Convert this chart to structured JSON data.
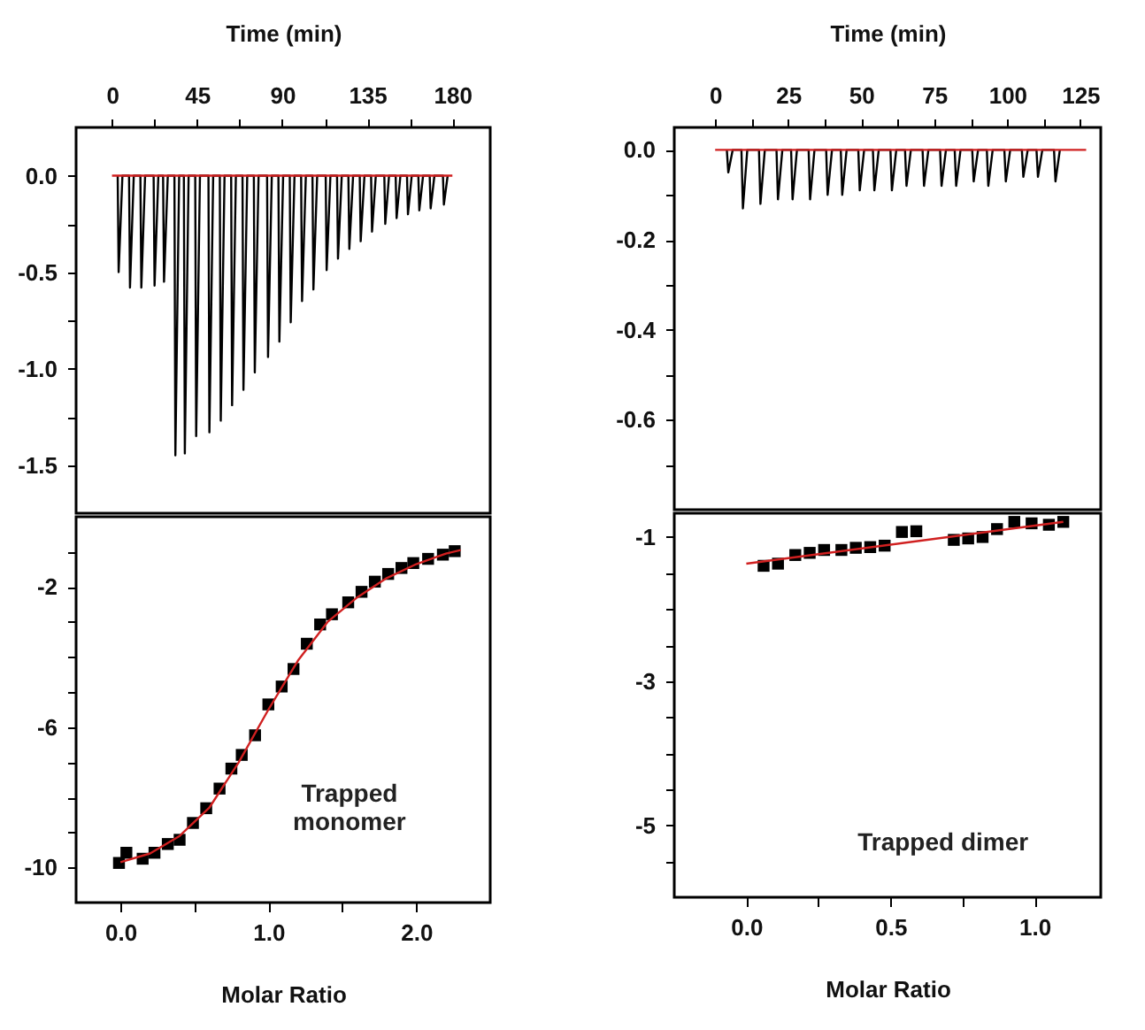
{
  "chart_data": [
    {
      "type": "line",
      "xlabel": "Time (min)",
      "xlim": [
        -19,
        200
      ],
      "ylim": [
        -1.75,
        0.25
      ],
      "xticks": [
        0,
        {
          "value": 22.5,
          "label": null
        },
        45,
        {
          "value": 67.5,
          "label": null
        },
        90,
        {
          "value": 112.5,
          "label": null
        },
        135,
        {
          "value": 157.5,
          "label": null
        },
        180
      ],
      "yticks": [
        {
          "value": 0,
          "label": "0.0"
        },
        {
          "value": -0.25,
          "label": null
        },
        {
          "value": -0.5,
          "label": "-0.5"
        },
        {
          "value": -0.75,
          "label": null
        },
        {
          "value": -1,
          "label": "-1.0"
        },
        {
          "value": -1.25,
          "label": null
        },
        {
          "value": -1.5,
          "label": "-1.5"
        }
      ],
      "series": [
        {
          "color": "#000000",
          "x": [
            3,
            3.5,
            5.5,
            9,
            9.5,
            11.5,
            15,
            15.5,
            17.5,
            22,
            22.5,
            24.5,
            27,
            27.5,
            29.5,
            33,
            33.5,
            35.5,
            38,
            38.5,
            40.5,
            44,
            44.5,
            46.5,
            51,
            51.5,
            53.5,
            57,
            57.5,
            59.5,
            63,
            63.5,
            65.5,
            69,
            69.5,
            71.5,
            75,
            75.5,
            77.5,
            82,
            82.5,
            84.5,
            88,
            88.5,
            90.5,
            94,
            94.5,
            96.5,
            100,
            100.5,
            102.5,
            106,
            106.5,
            108.5,
            113,
            113.5,
            115.5,
            119,
            119.5,
            121.5,
            125,
            125.5,
            127.5,
            131,
            131.5,
            133.5,
            137,
            137.5,
            139.5,
            144,
            144.5,
            146.5,
            150,
            150.5,
            152.5,
            156,
            156.5,
            158.5,
            162,
            162.5,
            164.5,
            168,
            168.5,
            170.5,
            175,
            175.5,
            177.5
          ],
          "values": [
            0,
            -0.5,
            0,
            0,
            -0.58,
            0,
            0,
            -0.58,
            0,
            0,
            -0.57,
            0,
            0,
            -0.55,
            0,
            0,
            -1.45,
            0,
            0,
            -1.44,
            0,
            0,
            -1.35,
            0,
            0,
            -1.33,
            0,
            0,
            -1.27,
            0,
            0,
            -1.19,
            0,
            0,
            -1.11,
            0,
            0,
            -1.02,
            0,
            0,
            -0.94,
            0,
            0,
            -0.86,
            0,
            0,
            -0.76,
            0,
            0,
            -0.65,
            0,
            0,
            -0.59,
            0,
            0,
            -0.49,
            0,
            0,
            -0.43,
            0,
            0,
            -0.38,
            0,
            0,
            -0.34,
            0,
            0,
            -0.29,
            0,
            0,
            -0.25,
            0,
            0,
            -0.22,
            0,
            0,
            -0.2,
            0,
            0,
            -0.18,
            0,
            0,
            -0.17,
            0,
            0,
            -0.15,
            0
          ]
        },
        {
          "color": "#d02020",
          "x": [
            0,
            180
          ],
          "values": [
            0,
            0
          ]
        }
      ]
    },
    {
      "type": "line",
      "xlabel": "Time (min)",
      "xlim": [
        -14,
        132
      ],
      "ylim": [
        -0.8,
        0.05
      ],
      "xticks": [
        0,
        {
          "value": 12.5,
          "label": null
        },
        25,
        {
          "value": 37.5,
          "label": null
        },
        50,
        {
          "value": 62.5,
          "label": null
        },
        75,
        {
          "value": 87.5,
          "label": null
        },
        100,
        {
          "value": 112.5,
          "label": null
        },
        125
      ],
      "yticks": [
        {
          "value": 0,
          "label": "0.0"
        },
        {
          "value": -0.1,
          "label": null
        },
        {
          "value": -0.2,
          "label": "-0.2"
        },
        {
          "value": -0.3,
          "label": null
        },
        {
          "value": -0.4,
          "label": "-0.4"
        },
        {
          "value": -0.5,
          "label": null
        },
        {
          "value": -0.6,
          "label": "-0.6"
        },
        {
          "value": -0.7,
          "label": null
        }
      ],
      "series": [
        {
          "color": "#000000",
          "x": [
            4,
            4.5,
            6,
            9,
            9.5,
            11,
            15,
            15.5,
            17,
            21,
            21.5,
            23,
            26,
            26.5,
            28,
            32,
            32.5,
            34,
            38,
            38.5,
            40,
            43,
            43.5,
            45,
            49,
            49.5,
            51,
            54,
            54.5,
            56,
            60,
            60.5,
            62,
            65,
            65.5,
            67,
            71,
            71.5,
            73,
            77,
            77.5,
            79,
            82,
            82.5,
            84,
            88,
            88.5,
            90,
            93,
            93.5,
            95,
            99,
            99.5,
            101,
            105,
            105.5,
            107,
            110,
            110.5,
            112,
            116,
            116.5,
            118
          ],
          "values": [
            0,
            -0.05,
            0,
            0,
            -0.13,
            0,
            0,
            -0.12,
            0,
            0,
            -0.11,
            0,
            0,
            -0.11,
            0,
            0,
            -0.11,
            0,
            0,
            -0.1,
            0,
            0,
            -0.1,
            0,
            0,
            -0.09,
            0,
            0,
            -0.09,
            0,
            0,
            -0.09,
            0,
            0,
            -0.08,
            0,
            0,
            -0.08,
            0,
            0,
            -0.08,
            0,
            0,
            -0.08,
            0,
            0,
            -0.07,
            0,
            0,
            -0.08,
            0,
            0,
            -0.07,
            0,
            0,
            -0.06,
            0,
            0,
            -0.06,
            0,
            0,
            -0.07,
            0
          ]
        },
        {
          "color": "#d02020",
          "x": [
            0,
            127
          ],
          "values": [
            0,
            0
          ]
        }
      ]
    },
    {
      "type": "scatter",
      "xlabel": "Molar Ratio",
      "xlim": [
        -0.3,
        2.5
      ],
      "ylim": [
        -11,
        0
      ],
      "xticks": [
        {
          "value": 0,
          "label": "0.0"
        },
        {
          "value": 0.5,
          "label": null
        },
        {
          "value": 1,
          "label": "1.0"
        },
        {
          "value": 1.5,
          "label": null
        },
        {
          "value": 2,
          "label": "2.0"
        }
      ],
      "yticks": [
        {
          "value": -1,
          "label": null
        },
        -2,
        {
          "value": -3,
          "label": null
        },
        {
          "value": -4,
          "label": null
        },
        {
          "value": -5,
          "label": null
        },
        -6,
        {
          "value": -7,
          "label": null
        },
        {
          "value": -8,
          "label": null
        },
        {
          "value": -9,
          "label": null
        },
        -10
      ],
      "annotations": [
        "Trapped\nmonomer"
      ],
      "series": [
        {
          "marker": "square",
          "color": "#000000",
          "x": [
            -0.01,
            0.04,
            0.15,
            0.23,
            0.32,
            0.4,
            0.49,
            0.58,
            0.67,
            0.75,
            0.82,
            0.91,
            1.0,
            1.09,
            1.17,
            1.26,
            1.35,
            1.43,
            1.54,
            1.63,
            1.72,
            1.81,
            1.9,
            1.98,
            2.08,
            2.18,
            2.26
          ],
          "values": [
            -9.87,
            -9.58,
            -9.75,
            -9.58,
            -9.33,
            -9.21,
            -8.73,
            -8.31,
            -7.75,
            -7.18,
            -6.79,
            -6.23,
            -5.35,
            -4.84,
            -4.34,
            -3.62,
            -3.07,
            -2.78,
            -2.44,
            -2.14,
            -1.85,
            -1.63,
            -1.46,
            -1.32,
            -1.2,
            -1.08,
            -0.98
          ]
        },
        {
          "type": "line",
          "color": "#d02020",
          "x": [
            0.0,
            0.2,
            0.4,
            0.6,
            0.8,
            1.0,
            1.2,
            1.4,
            1.6,
            1.8,
            2.0,
            2.2,
            2.3
          ],
          "values": [
            -9.85,
            -9.6,
            -9.1,
            -8.3,
            -7.0,
            -5.5,
            -4.1,
            -3.0,
            -2.3,
            -1.75,
            -1.35,
            -1.05,
            -0.95
          ]
        }
      ]
    },
    {
      "type": "scatter",
      "xlabel": "Molar Ratio",
      "xlim": [
        -0.25,
        1.23
      ],
      "ylim": [
        -6,
        -0.67
      ],
      "xticks": [
        {
          "value": 0,
          "label": "0.0"
        },
        {
          "value": 0.25,
          "label": null
        },
        {
          "value": 0.5,
          "label": "0.5"
        },
        {
          "value": 0.75,
          "label": null
        },
        {
          "value": 1,
          "label": "1.0"
        }
      ],
      "yticks": [
        -1,
        {
          "value": -1.5,
          "label": null
        },
        {
          "value": -2,
          "label": null
        },
        {
          "value": -2.5,
          "label": null
        },
        -3,
        {
          "value": -3.5,
          "label": null
        },
        {
          "value": -4,
          "label": null
        },
        {
          "value": -4.5,
          "label": null
        },
        -5,
        {
          "value": -5.5,
          "label": null
        }
      ],
      "annotations": [
        "Trapped dimer"
      ],
      "series": [
        {
          "marker": "square",
          "color": "#000000",
          "x": [
            0.06,
            0.11,
            0.17,
            0.22,
            0.27,
            0.33,
            0.38,
            0.43,
            0.48,
            0.54,
            0.59,
            0.72,
            0.77,
            0.82,
            0.87,
            0.93,
            0.99,
            1.05,
            1.1
          ],
          "values": [
            -1.4,
            -1.37,
            -1.25,
            -1.22,
            -1.18,
            -1.18,
            -1.15,
            -1.14,
            -1.12,
            -0.93,
            -0.92,
            -1.04,
            -1.02,
            -1.0,
            -0.89,
            -0.79,
            -0.81,
            -0.83,
            -0.79
          ]
        },
        {
          "type": "line",
          "color": "#d02020",
          "x": [
            0.0,
            1.1
          ],
          "values": [
            -1.37,
            -0.79
          ]
        }
      ]
    }
  ]
}
